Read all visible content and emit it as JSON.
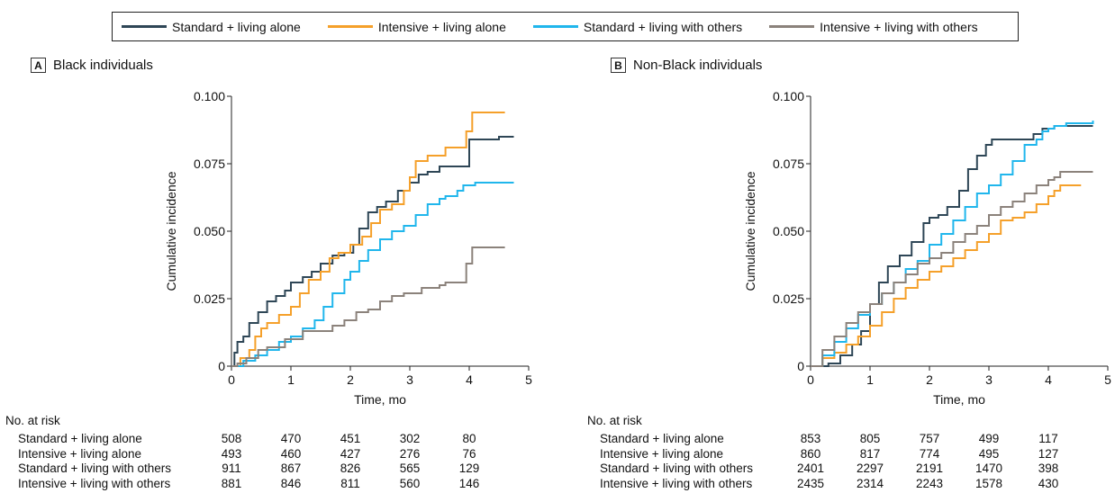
{
  "legend": [
    {
      "label": "Standard + living alone",
      "color": "#2e4656"
    },
    {
      "label": "Intensive + living alone",
      "color": "#f5a02a"
    },
    {
      "label": "Standard + living with others",
      "color": "#20b6ec"
    },
    {
      "label": "Intensive + living with others",
      "color": "#8b827b"
    }
  ],
  "panels": [
    {
      "letter": "A",
      "title": "Black individuals"
    },
    {
      "letter": "B",
      "title": "Non-Black individuals"
    }
  ],
  "axes": {
    "ylabel": "Cumulative incidence",
    "xlabel": "Time, mo",
    "yticks": [
      "0",
      "0.025",
      "0.050",
      "0.075",
      "0.100"
    ],
    "xticks": [
      "0",
      "1",
      "2",
      "3",
      "4",
      "5"
    ]
  },
  "risk": {
    "title": "No. at risk",
    "rows": [
      "Standard + living alone",
      "Intensive + living alone",
      "Standard + living with others",
      "Intensive + living with others"
    ],
    "A": [
      [
        "508",
        "470",
        "451",
        "302",
        "80"
      ],
      [
        "493",
        "460",
        "427",
        "276",
        "76"
      ],
      [
        "911",
        "867",
        "826",
        "565",
        "129"
      ],
      [
        "881",
        "846",
        "811",
        "560",
        "146"
      ]
    ],
    "B": [
      [
        "853",
        "805",
        "757",
        "499",
        "117"
      ],
      [
        "860",
        "817",
        "774",
        "495",
        "127"
      ],
      [
        "2401",
        "2297",
        "2191",
        "1470",
        "398"
      ],
      [
        "2435",
        "2314",
        "2243",
        "1578",
        "430"
      ]
    ]
  },
  "chart_data": [
    {
      "type": "line",
      "title": "Black individuals",
      "xlabel": "Time, mo",
      "ylabel": "Cumulative incidence",
      "xlim": [
        0,
        5
      ],
      "ylim": [
        0,
        0.1
      ],
      "series": [
        {
          "name": "Standard + living alone",
          "color": "#2e4656",
          "x": [
            0,
            0.05,
            0.1,
            0.2,
            0.3,
            0.45,
            0.6,
            0.75,
            0.9,
            1.0,
            1.2,
            1.35,
            1.5,
            1.7,
            1.9,
            2.05,
            2.15,
            2.3,
            2.45,
            2.6,
            2.8,
            3.0,
            3.15,
            3.3,
            3.5,
            3.75,
            3.95,
            4.0,
            4.5,
            4.75
          ],
          "y": [
            0,
            0.005,
            0.009,
            0.011,
            0.016,
            0.02,
            0.024,
            0.026,
            0.028,
            0.031,
            0.033,
            0.035,
            0.038,
            0.041,
            0.042,
            0.045,
            0.051,
            0.057,
            0.059,
            0.061,
            0.065,
            0.068,
            0.071,
            0.072,
            0.074,
            0.074,
            0.074,
            0.084,
            0.085,
            0.085
          ]
        },
        {
          "name": "Intensive + living alone",
          "color": "#f5a02a",
          "x": [
            0,
            0.15,
            0.3,
            0.4,
            0.5,
            0.6,
            0.8,
            1.0,
            1.15,
            1.3,
            1.5,
            1.65,
            1.8,
            2.0,
            2.2,
            2.35,
            2.5,
            2.7,
            2.9,
            3.0,
            3.1,
            3.3,
            3.6,
            3.95,
            4.05,
            4.5,
            4.6
          ],
          "y": [
            0,
            0.003,
            0.006,
            0.011,
            0.014,
            0.016,
            0.019,
            0.022,
            0.027,
            0.032,
            0.035,
            0.04,
            0.042,
            0.045,
            0.048,
            0.053,
            0.058,
            0.06,
            0.065,
            0.07,
            0.076,
            0.078,
            0.081,
            0.087,
            0.094,
            0.094,
            0.094
          ]
        },
        {
          "name": "Standard + living with others",
          "color": "#20b6ec",
          "x": [
            0,
            0.2,
            0.4,
            0.6,
            0.8,
            1.0,
            1.2,
            1.4,
            1.55,
            1.7,
            1.9,
            2.0,
            2.15,
            2.3,
            2.5,
            2.7,
            2.9,
            3.1,
            3.3,
            3.5,
            3.6,
            3.8,
            3.9,
            4.1,
            4.75
          ],
          "y": [
            0,
            0.002,
            0.004,
            0.006,
            0.009,
            0.011,
            0.014,
            0.017,
            0.022,
            0.027,
            0.032,
            0.035,
            0.039,
            0.043,
            0.047,
            0.05,
            0.052,
            0.056,
            0.06,
            0.062,
            0.063,
            0.065,
            0.067,
            0.068,
            0.068
          ]
        },
        {
          "name": "Intensive + living with others",
          "color": "#8b827b",
          "x": [
            0,
            0.1,
            0.25,
            0.45,
            0.6,
            0.9,
            1.2,
            1.5,
            1.7,
            1.9,
            2.1,
            2.3,
            2.5,
            2.7,
            2.9,
            3.0,
            3.2,
            3.5,
            3.6,
            3.9,
            3.95,
            4.05,
            4.6
          ],
          "y": [
            0,
            0.001,
            0.003,
            0.006,
            0.007,
            0.01,
            0.013,
            0.013,
            0.015,
            0.017,
            0.02,
            0.021,
            0.024,
            0.026,
            0.027,
            0.027,
            0.029,
            0.03,
            0.031,
            0.031,
            0.038,
            0.044,
            0.044
          ]
        }
      ]
    },
    {
      "type": "line",
      "title": "Non-Black individuals",
      "xlabel": "Time, mo",
      "ylabel": "Cumulative incidence",
      "xlim": [
        0,
        5
      ],
      "ylim": [
        0,
        0.1
      ],
      "series": [
        {
          "name": "Standard + living alone",
          "color": "#2e4656",
          "x": [
            0,
            0.3,
            0.5,
            0.7,
            0.85,
            1.0,
            1.15,
            1.3,
            1.5,
            1.7,
            1.9,
            2.0,
            2.15,
            2.3,
            2.5,
            2.65,
            2.8,
            2.95,
            3.05,
            3.2,
            3.4,
            3.6,
            3.75,
            3.9,
            4.1,
            4.75
          ],
          "y": [
            0,
            0.001,
            0.004,
            0.008,
            0.013,
            0.023,
            0.031,
            0.037,
            0.041,
            0.046,
            0.053,
            0.055,
            0.056,
            0.059,
            0.065,
            0.073,
            0.078,
            0.082,
            0.084,
            0.084,
            0.084,
            0.084,
            0.086,
            0.088,
            0.089,
            0.089
          ]
        },
        {
          "name": "Intensive + living alone",
          "color": "#f5a02a",
          "x": [
            0,
            0.2,
            0.4,
            0.6,
            0.8,
            1.0,
            1.2,
            1.4,
            1.6,
            1.8,
            2.0,
            2.2,
            2.4,
            2.6,
            2.8,
            3.0,
            3.2,
            3.4,
            3.6,
            3.8,
            4.0,
            4.1,
            4.2,
            4.55
          ],
          "y": [
            0,
            0.003,
            0.005,
            0.008,
            0.011,
            0.015,
            0.02,
            0.025,
            0.029,
            0.032,
            0.035,
            0.037,
            0.04,
            0.043,
            0.046,
            0.049,
            0.054,
            0.055,
            0.057,
            0.06,
            0.063,
            0.065,
            0.067,
            0.067
          ]
        },
        {
          "name": "Standard + living with others",
          "color": "#20b6ec",
          "x": [
            0,
            0.2,
            0.4,
            0.6,
            0.8,
            1.0,
            1.2,
            1.4,
            1.6,
            1.8,
            2.0,
            2.2,
            2.4,
            2.6,
            2.8,
            3.0,
            3.2,
            3.4,
            3.6,
            3.8,
            3.9,
            4.0,
            4.1,
            4.3,
            4.75
          ],
          "y": [
            0,
            0.004,
            0.009,
            0.014,
            0.019,
            0.023,
            0.027,
            0.031,
            0.036,
            0.039,
            0.045,
            0.049,
            0.054,
            0.059,
            0.064,
            0.067,
            0.071,
            0.076,
            0.082,
            0.084,
            0.087,
            0.088,
            0.089,
            0.09,
            0.091
          ]
        },
        {
          "name": "Intensive + living with others",
          "color": "#8b827b",
          "x": [
            0,
            0.2,
            0.4,
            0.6,
            0.8,
            1.0,
            1.2,
            1.4,
            1.6,
            1.8,
            2.0,
            2.2,
            2.4,
            2.6,
            2.8,
            3.0,
            3.2,
            3.4,
            3.6,
            3.8,
            4.0,
            4.1,
            4.2,
            4.75
          ],
          "y": [
            0,
            0.006,
            0.011,
            0.016,
            0.02,
            0.023,
            0.027,
            0.031,
            0.034,
            0.038,
            0.04,
            0.042,
            0.046,
            0.049,
            0.052,
            0.056,
            0.059,
            0.061,
            0.064,
            0.067,
            0.069,
            0.07,
            0.072,
            0.072
          ]
        }
      ]
    }
  ]
}
